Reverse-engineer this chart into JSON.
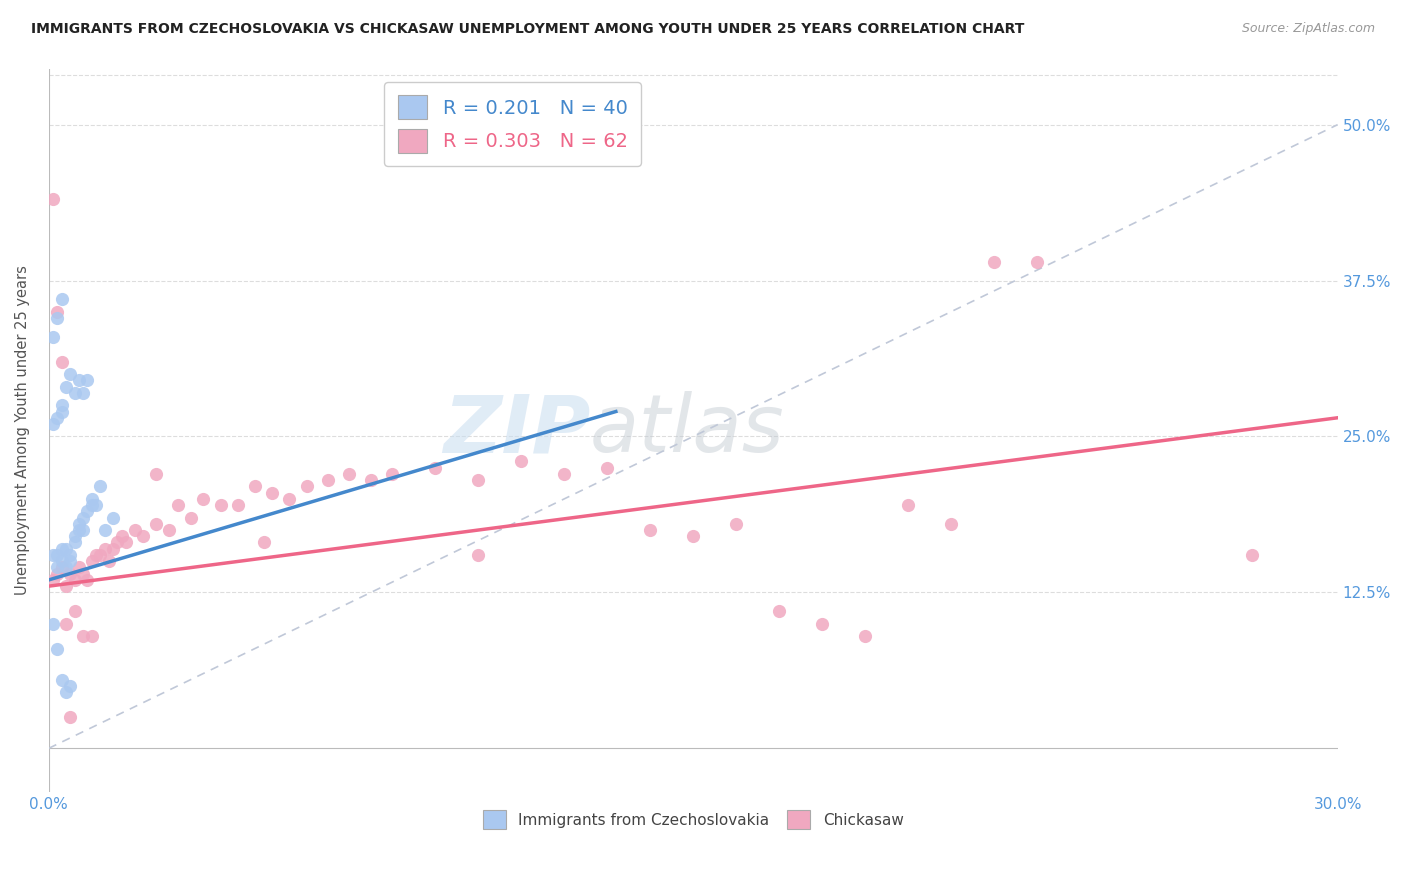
{
  "title": "IMMIGRANTS FROM CZECHOSLOVAKIA VS CHICKASAW UNEMPLOYMENT AMONG YOUTH UNDER 25 YEARS CORRELATION CHART",
  "source": "Source: ZipAtlas.com",
  "ylabel": "Unemployment Among Youth under 25 years",
  "y_ticks": [
    "12.5%",
    "25.0%",
    "37.5%",
    "50.0%"
  ],
  "y_tick_vals": [
    0.125,
    0.25,
    0.375,
    0.5
  ],
  "x_min": 0.0,
  "x_max": 0.3,
  "y_min": -0.035,
  "y_max": 0.545,
  "blue_R": 0.201,
  "blue_N": 40,
  "pink_R": 0.303,
  "pink_N": 62,
  "blue_color": "#aac8f0",
  "pink_color": "#f0a8c0",
  "blue_line_color": "#4488cc",
  "pink_line_color": "#ee6688",
  "diagonal_color": "#c0c8d8",
  "legend_label_blue": "Immigrants from Czechoslovakia",
  "legend_label_pink": "Chickasaw",
  "watermark_zip": "ZIP",
  "watermark_atlas": "atlas",
  "blue_scatter_x": [
    0.001,
    0.002,
    0.002,
    0.003,
    0.003,
    0.004,
    0.004,
    0.005,
    0.005,
    0.006,
    0.006,
    0.007,
    0.007,
    0.008,
    0.008,
    0.009,
    0.01,
    0.01,
    0.011,
    0.012,
    0.001,
    0.002,
    0.003,
    0.003,
    0.004,
    0.005,
    0.006,
    0.007,
    0.008,
    0.009,
    0.001,
    0.002,
    0.003,
    0.004,
    0.005,
    0.001,
    0.002,
    0.003,
    0.013,
    0.015
  ],
  "blue_scatter_y": [
    0.155,
    0.155,
    0.145,
    0.16,
    0.15,
    0.16,
    0.145,
    0.155,
    0.15,
    0.17,
    0.165,
    0.175,
    0.18,
    0.175,
    0.185,
    0.19,
    0.2,
    0.195,
    0.195,
    0.21,
    0.26,
    0.265,
    0.27,
    0.275,
    0.29,
    0.3,
    0.285,
    0.295,
    0.285,
    0.295,
    0.1,
    0.08,
    0.055,
    0.045,
    0.05,
    0.33,
    0.345,
    0.36,
    0.175,
    0.185
  ],
  "pink_scatter_x": [
    0.001,
    0.002,
    0.003,
    0.004,
    0.005,
    0.006,
    0.007,
    0.008,
    0.009,
    0.01,
    0.011,
    0.012,
    0.013,
    0.014,
    0.015,
    0.016,
    0.017,
    0.018,
    0.02,
    0.022,
    0.025,
    0.028,
    0.03,
    0.033,
    0.036,
    0.04,
    0.044,
    0.048,
    0.052,
    0.056,
    0.06,
    0.065,
    0.07,
    0.075,
    0.08,
    0.09,
    0.1,
    0.11,
    0.12,
    0.13,
    0.14,
    0.15,
    0.16,
    0.17,
    0.18,
    0.19,
    0.2,
    0.21,
    0.22,
    0.23,
    0.001,
    0.002,
    0.003,
    0.004,
    0.005,
    0.006,
    0.008,
    0.01,
    0.025,
    0.05,
    0.1,
    0.28
  ],
  "pink_scatter_y": [
    0.135,
    0.14,
    0.145,
    0.13,
    0.14,
    0.135,
    0.145,
    0.14,
    0.135,
    0.15,
    0.155,
    0.155,
    0.16,
    0.15,
    0.16,
    0.165,
    0.17,
    0.165,
    0.175,
    0.17,
    0.18,
    0.175,
    0.195,
    0.185,
    0.2,
    0.195,
    0.195,
    0.21,
    0.205,
    0.2,
    0.21,
    0.215,
    0.22,
    0.215,
    0.22,
    0.225,
    0.215,
    0.23,
    0.22,
    0.225,
    0.175,
    0.17,
    0.18,
    0.11,
    0.1,
    0.09,
    0.195,
    0.18,
    0.39,
    0.39,
    0.44,
    0.35,
    0.31,
    0.1,
    0.025,
    0.11,
    0.09,
    0.09,
    0.22,
    0.165,
    0.155,
    0.155
  ],
  "blue_line_x0": 0.0,
  "blue_line_x1": 0.132,
  "blue_line_y0": 0.135,
  "blue_line_y1": 0.27,
  "pink_line_x0": 0.0,
  "pink_line_x1": 0.3,
  "pink_line_y0": 0.13,
  "pink_line_y1": 0.265
}
